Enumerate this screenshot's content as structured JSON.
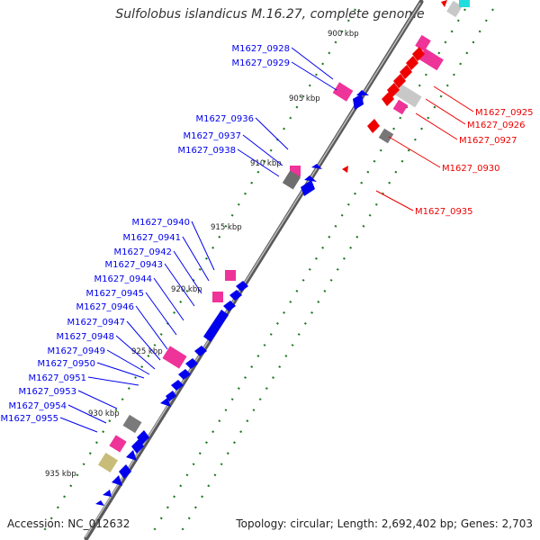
{
  "title": "Sulfolobus islandicus M.16.27, complete genome",
  "footer": {
    "accession": "Accession: NC_012632",
    "summary": "Topology: circular; Length: 2,692,402 bp; Genes: 2,703"
  },
  "colors": {
    "forward_cds": "#0000ee",
    "reverse_cds": "#ee0000",
    "rna": "#ee3399",
    "pseudo": "#888888",
    "other": "#c8bd78",
    "tick": "#1f7a1f",
    "backbone": "#808080"
  },
  "kbp_ticks": [
    "900 kbp",
    "905 kbp",
    "910 kbp",
    "915 kbp",
    "920 kbp",
    "925 kbp",
    "930 kbp",
    "935 kbp"
  ],
  "reverse_labels": [
    "M1627_0925",
    "M1627_0926",
    "M1627_0927",
    "M1627_0930",
    "M1627_0935"
  ],
  "forward_labels": [
    "M1627_0928",
    "M1627_0929",
    "M1627_0936",
    "M1627_0937",
    "M1627_0938",
    "M1627_0940",
    "M1627_0941",
    "M1627_0942",
    "M1627_0943",
    "M1627_0944",
    "M1627_0945",
    "M1627_0946",
    "M1627_0947",
    "M1627_0948",
    "M1627_0949",
    "M1627_0950",
    "M1627_0951",
    "M1627_0953",
    "M1627_0954",
    "M1627_0955"
  ]
}
